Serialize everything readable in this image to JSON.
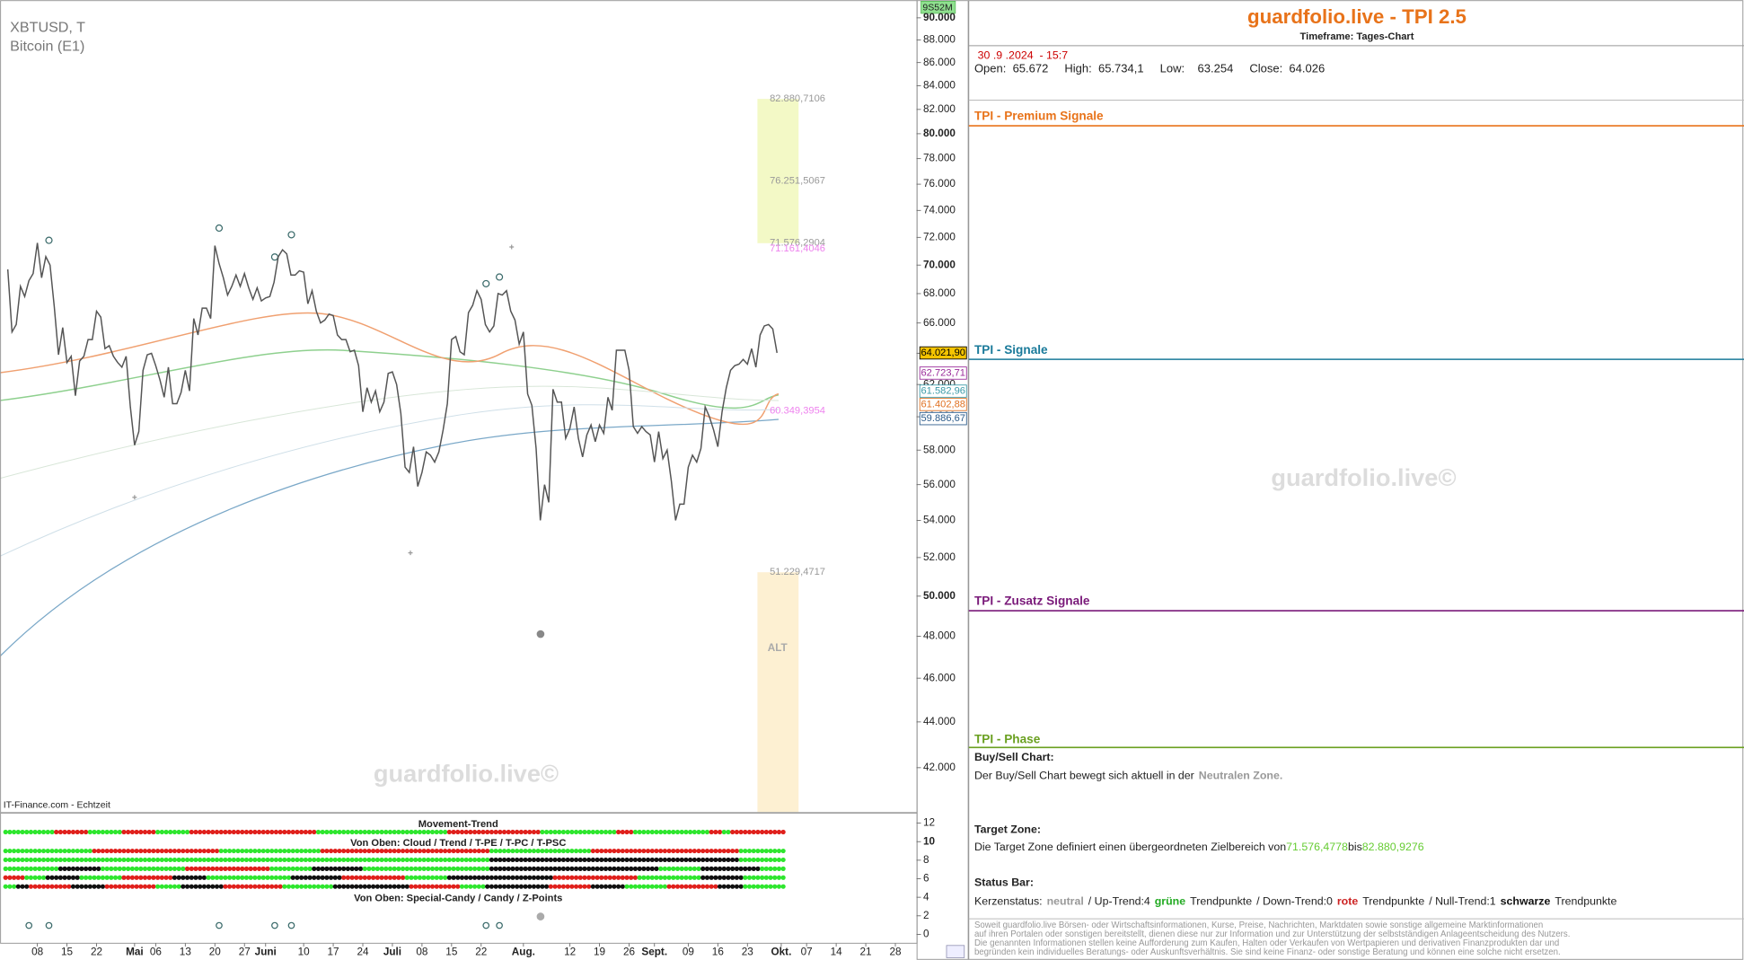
{
  "chart_data": {
    "type": "line",
    "symbol": "XBTUSD, T",
    "title": "Bitcoin (E1)",
    "source": "IT-Finance.com - Echtzeit",
    "watermark": "guardfolio.live©",
    "badge": "9S52M",
    "color": "#555555",
    "log_scale": true,
    "ylim": [
      40150,
      91640
    ],
    "yticks": [
      {
        "value": 42000,
        "label": "42.000"
      },
      {
        "value": 44000,
        "label": "44.000"
      },
      {
        "value": 46000,
        "label": "46.000"
      },
      {
        "value": 48000,
        "label": "48.000"
      },
      {
        "value": 50000,
        "label": "50.000"
      },
      {
        "value": 52000,
        "label": "52.000"
      },
      {
        "value": 54000,
        "label": "54.000"
      },
      {
        "value": 56000,
        "label": "56.000"
      },
      {
        "value": 58000,
        "label": "58.000"
      },
      {
        "value": 60000,
        "label": "60.000"
      },
      {
        "value": 62000,
        "label": "62.000"
      },
      {
        "value": 64000,
        "label": "64.000"
      },
      {
        "value": 66000,
        "label": "66.000"
      },
      {
        "value": 68000,
        "label": "68.000"
      },
      {
        "value": 70000,
        "label": "70.000"
      },
      {
        "value": 72000,
        "label": "72.000"
      },
      {
        "value": 74000,
        "label": "74.000"
      },
      {
        "value": 76000,
        "label": "76.000"
      },
      {
        "value": 78000,
        "label": "78.000"
      },
      {
        "value": 80000,
        "label": "80.000"
      },
      {
        "value": 82000,
        "label": "82.000"
      },
      {
        "value": 84000,
        "label": "84.000"
      },
      {
        "value": 86000,
        "label": "86.000"
      },
      {
        "value": 88000,
        "label": "88.000"
      },
      {
        "value": 90000,
        "label": "90.000"
      }
    ],
    "categories": [
      null,
      null,
      null,
      null,
      null,
      null,
      null,
      "08",
      null,
      null,
      null,
      null,
      null,
      null,
      "15",
      null,
      null,
      null,
      null,
      null,
      null,
      "22",
      null,
      null,
      null,
      null,
      null,
      null,
      null,
      null,
      "Mai",
      null,
      null,
      null,
      null,
      "06",
      null,
      null,
      null,
      null,
      null,
      null,
      "13",
      null,
      null,
      null,
      null,
      null,
      null,
      "20",
      null,
      null,
      null,
      null,
      null,
      null,
      "27",
      null,
      null,
      null,
      null,
      "Juni",
      null,
      null,
      null,
      null,
      null,
      null,
      null,
      null,
      "10",
      null,
      null,
      null,
      null,
      null,
      null,
      "17",
      null,
      null,
      null,
      null,
      null,
      null,
      "24",
      null,
      null,
      null,
      null,
      null,
      null,
      "Juli",
      null,
      null,
      null,
      null,
      null,
      null,
      "08",
      null,
      null,
      null,
      null,
      null,
      null,
      "15",
      null,
      null,
      null,
      null,
      null,
      null,
      "22",
      null,
      null,
      null,
      null,
      null,
      null,
      null,
      null,
      null,
      "Aug.",
      null,
      null,
      null,
      null,
      null,
      null,
      null,
      null,
      null,
      null,
      "12",
      null,
      null,
      null,
      null,
      null,
      null,
      "19",
      null,
      null,
      null,
      null,
      null,
      null,
      "26",
      null,
      null,
      null,
      null,
      null,
      "Sept.",
      null,
      null,
      null,
      null,
      null,
      null,
      null,
      "09",
      null,
      null,
      null,
      null,
      null,
      null,
      "16",
      null,
      null,
      null,
      null,
      null,
      null,
      "23",
      null,
      null,
      null,
      null,
      null,
      null,
      null,
      "Okt.",
      null,
      null,
      null,
      null,
      null,
      "07",
      null,
      null,
      null,
      null,
      null,
      null,
      "14",
      null,
      null,
      null,
      null,
      null,
      null,
      "21",
      null,
      null,
      null,
      null,
      null,
      null,
      "28",
      null,
      null,
      null
    ],
    "values": [
      69700,
      65400,
      65900,
      68500,
      67800,
      68900,
      69400,
      71600,
      69100,
      70600,
      70000,
      67100,
      63900,
      65700,
      63400,
      63800,
      61300,
      63500,
      63800,
      64900,
      64900,
      66800,
      66400,
      64300,
      64500,
      63800,
      63400,
      63100,
      63800,
      60600,
      58300,
      59100,
      62900,
      63900,
      64000,
      63200,
      62300,
      61200,
      63100,
      60800,
      60800,
      61500,
      62900,
      61600,
      66300,
      65200,
      67000,
      67000,
      66300,
      71400,
      70100,
      69100,
      67900,
      68500,
      69300,
      68500,
      69400,
      68400,
      67600,
      68400,
      67500,
      67700,
      67800,
      68800,
      70600,
      71100,
      70800,
      69300,
      69300,
      69600,
      69500,
      67300,
      68200,
      66800,
      66000,
      66200,
      66600,
      66500,
      65200,
      64900,
      64900,
      64100,
      64200,
      63200,
      60300,
      61800,
      60900,
      61600,
      60300,
      60900,
      62700,
      62800,
      62000,
      60200,
      57000,
      56700,
      58200,
      55900,
      56700,
      57900,
      57700,
      57300,
      57900,
      59200,
      60800,
      64900,
      65100,
      64100,
      63900,
      66700,
      67200,
      68200,
      67600,
      65900,
      65400,
      65800,
      68000,
      67900,
      68200,
      66800,
      66200,
      64600,
      65400,
      61400,
      60700,
      58100,
      54000,
      56000,
      55000,
      61700,
      60900,
      60900,
      58700,
      59300,
      60600,
      58700,
      57600,
      58900,
      59500,
      58500,
      59500,
      59000,
      61200,
      60400,
      64200,
      64200,
      64200,
      62900,
      59400,
      59000,
      59400,
      59100,
      58900,
      57300,
      59100,
      57500,
      58000,
      56200,
      54000,
      54900,
      54900,
      57000,
      57700,
      57300,
      58100,
      60600,
      60000,
      59200,
      58200,
      60300,
      61800,
      62900,
      63200,
      63300,
      63600,
      63300,
      64300,
      63100,
      65200,
      65800,
      65900,
      65600,
      64026,
      null,
      null,
      null,
      null,
      null,
      null,
      null,
      null,
      null,
      null,
      null,
      null,
      null,
      null,
      null,
      null,
      null,
      null,
      null,
      null,
      null,
      null,
      null,
      null,
      null,
      null,
      null,
      null,
      null,
      null,
      null
    ],
    "levels": [
      {
        "value": 64021.9,
        "label": "64.021,90",
        "color": "#000000",
        "fill": "#f5c400"
      },
      {
        "value": 62723.71,
        "label": "62.723,71",
        "color": "#9a2a9a",
        "fill": "#ffffff"
      },
      {
        "value": 61582.96,
        "label": "61.582,96",
        "color": "#3a9aa8",
        "fill": "#ffffff"
      },
      {
        "value": 61402.88,
        "label": "61.402,88",
        "color": "#e07020",
        "fill": "#ffffff"
      },
      {
        "value": 59886.67,
        "label": "59.886,67",
        "color": "#2a5a8a",
        "fill": "#ffffff"
      }
    ],
    "annotations": [
      {
        "value": 82880.7106,
        "label": "82.880,7106",
        "color": "#999999"
      },
      {
        "value": 76251.5067,
        "label": "76.251,5067",
        "color": "#999999"
      },
      {
        "value": 71576.2904,
        "label": "71.576,2904",
        "color": "#999999"
      },
      {
        "value": 71161.4046,
        "label": "71.161,4046",
        "color": "#ee82ee"
      },
      {
        "value": 60349.3954,
        "label": "60.349,3954",
        "color": "#ee82ee"
      },
      {
        "value": 51229.4717,
        "label": "51.229,4717",
        "color": "#999999"
      }
    ],
    "zone_label": "ALT",
    "zone_colors": [
      "#f3f9c6",
      "#fdf0d2"
    ],
    "indicator": {
      "titles": [
        "Movement-Trend",
        "Von Oben: Cloud / Trend / T-PE / T-PC / T-PSC",
        "Von Oben: Special-Candy / Candy / Z-Points"
      ],
      "ylim": [
        0,
        12
      ],
      "yticks": [
        12,
        10,
        8,
        6,
        4,
        2,
        0
      ],
      "rows": [
        [
          [
            "#2ee62e",
            12
          ],
          [
            "#e0201c",
            8
          ],
          [
            "#2ee62e",
            8
          ],
          [
            "#e0201c",
            8
          ],
          [
            "#2ee62e",
            8
          ],
          [
            "#e0201c",
            30
          ],
          [
            "#2ee62e",
            31
          ],
          [
            "#e0201c",
            22
          ],
          [
            "#2ee62e",
            18
          ],
          [
            "#e0201c",
            4
          ],
          [
            "#2ee62e",
            18
          ],
          [
            "#e0201c",
            3
          ],
          [
            "#2ee62e",
            2
          ],
          [
            "#e0201c",
            13
          ]
        ],
        [
          [
            "#2ee62e",
            21
          ],
          [
            "#e0201c",
            30
          ],
          [
            "#2ee62e",
            24
          ],
          [
            "#e0201c",
            40
          ],
          [
            "#2ee62e",
            24
          ],
          [
            "#e0201c",
            35
          ],
          [
            "#2ee62e",
            11
          ]
        ],
        [
          [
            "#2ee62e",
            115
          ],
          [
            "#111111",
            59
          ],
          [
            "#2ee62e",
            11
          ]
        ],
        [
          [
            "#2ee62e",
            13
          ],
          [
            "#111111",
            10
          ],
          [
            "#2ee62e",
            20
          ],
          [
            "#e0201c",
            20
          ],
          [
            "#2ee62e",
            10
          ],
          [
            "#111111",
            12
          ],
          [
            "#2ee62e",
            30
          ],
          [
            "#111111",
            40
          ],
          [
            "#2ee62e",
            10
          ],
          [
            "#111111",
            14
          ],
          [
            "#2ee62e",
            6
          ]
        ],
        [
          [
            "#e0201c",
            5
          ],
          [
            "#2ee62e",
            5
          ],
          [
            "#111111",
            8
          ],
          [
            "#2ee62e",
            10
          ],
          [
            "#e0201c",
            12
          ],
          [
            "#111111",
            8
          ],
          [
            "#2ee62e",
            20
          ],
          [
            "#111111",
            12
          ],
          [
            "#e0201c",
            15
          ],
          [
            "#2ee62e",
            10
          ],
          [
            "#111111",
            25
          ],
          [
            "#e0201c",
            20
          ],
          [
            "#2ee62e",
            15
          ],
          [
            "#111111",
            10
          ],
          [
            "#2ee62e",
            10
          ]
        ],
        [
          [
            "#2ee62e",
            3
          ],
          [
            "#111111",
            3
          ],
          [
            "#e0201c",
            10
          ],
          [
            "#111111",
            8
          ],
          [
            "#e0201c",
            12
          ],
          [
            "#2ee62e",
            6
          ],
          [
            "#111111",
            10
          ],
          [
            "#e0201c",
            14
          ],
          [
            "#2ee62e",
            12
          ],
          [
            "#111111",
            18
          ],
          [
            "#e0201c",
            12
          ],
          [
            "#2ee62e",
            6
          ],
          [
            "#111111",
            15
          ],
          [
            "#e0201c",
            10
          ],
          [
            "#111111",
            8
          ],
          [
            "#2ee62e",
            10
          ],
          [
            "#e0201c",
            12
          ],
          [
            "#111111",
            6
          ],
          [
            "#2ee62e",
            10
          ]
        ]
      ]
    }
  },
  "panel": {
    "title": "guardfolio.live - TPI 2.5",
    "subtitle": "Timeframe: Tages-Chart",
    "datetime": "30 .9 .2024  - 15:7",
    "ohlc": "Open:  65.672     High:  65.734,1     Low:    63.254     Close:  64.026",
    "sections": [
      {
        "title": "TPI - Premium Signale",
        "color": "#e8731a"
      },
      {
        "title": "TPI - Signale",
        "color": "#1a7a9a"
      },
      {
        "title": "TPI - Zusatz Signale",
        "color": "#7a1a7a"
      },
      {
        "title": "TPI - Phase",
        "color": "#6aa020"
      }
    ],
    "watermark": "guardfolio.live©",
    "buy_sell": {
      "heading": "Buy/Sell Chart:",
      "text": "Der Buy/Sell Chart bewegt sich aktuell in der",
      "zone": "Neutralen Zone."
    },
    "target": {
      "heading": "Target Zone:",
      "text": "Die Target Zone definiert einen übergeordneten Zielbereich von",
      "from": "71.576,4778",
      "between": "bis",
      "to": "82.880,9276"
    },
    "status": {
      "heading": "Status Bar:",
      "parts": [
        {
          "text": "Kerzenstatus:",
          "color": "#222222",
          "bold": false
        },
        {
          "text": "neutral",
          "color": "#999999",
          "bold": true
        },
        {
          "text": "/ Up-Trend:4",
          "color": "#222222",
          "bold": false
        },
        {
          "text": "grüne",
          "color": "#22aa22",
          "bold": true
        },
        {
          "text": "Trendpunkte",
          "color": "#222222",
          "bold": false
        },
        {
          "text": "/ Down-Trend:0",
          "color": "#222222",
          "bold": false
        },
        {
          "text": "rote",
          "color": "#cc2222",
          "bold": true
        },
        {
          "text": "Trendpunkte",
          "color": "#222222",
          "bold": false
        },
        {
          "text": "/ Null-Trend:1",
          "color": "#222222",
          "bold": false
        },
        {
          "text": "schwarze",
          "color": "#111111",
          "bold": true
        },
        {
          "text": "Trendpunkte",
          "color": "#222222",
          "bold": false
        }
      ]
    },
    "disclaimer": [
      "Soweit guardfolio.live Börsen- oder Wirtschaftsinformationen, Kurse, Preise, Nachrichten, Marktdaten sowie sonstige allgemeine Marktinformationen",
      "auf ihren Portalen oder sonstigen bereitstellt, dienen diese nur zur Information und zur Unterstützung der selbstständigen Anlageentscheidung des Nutzers.",
      "Die genannten Informationen stellen keine Aufforderung zum Kaufen, Halten oder Verkaufen von Wertpapieren und derivativen Finanzprodukten dar und",
      "begründen kein individuelles Beratungs- oder Auskunftsverhältnis. Sie sind keine Finanz- oder sonstige Beratung und können eine solche nicht ersetzen."
    ]
  }
}
